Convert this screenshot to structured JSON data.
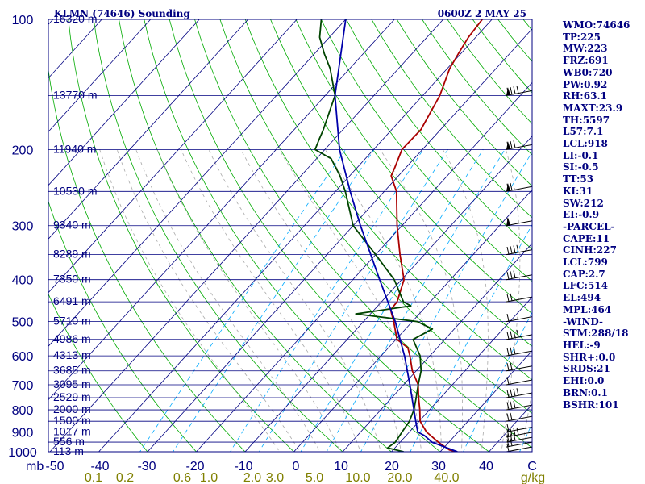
{
  "header": {
    "station": "KLMN (74646) Sounding",
    "time": "0600Z  2 MAY 25"
  },
  "axis_labels": {
    "pressure_unit": "mb",
    "mixing_ratio_unit": "g/kg"
  },
  "pressure_ticks": [
    "100",
    "200",
    "300",
    "400",
    "500",
    "600",
    "700",
    "800",
    "900",
    "1000"
  ],
  "temp_ticks": [
    "-50",
    "-40",
    "-30",
    "-20",
    "-10",
    "0",
    "10",
    "20",
    "30",
    "40",
    "C"
  ],
  "mixing_ratio_labels": [
    "0.1",
    "0.2",
    "0.6",
    "1.0",
    "2.0",
    "3.0",
    "5.0",
    "10.0",
    "20.0",
    "40.0"
  ],
  "height_labels": [
    "16320 m",
    "13770 m",
    "11940 m",
    "10530 m",
    "9340 m",
    "8289 m",
    "7350 m",
    "6491 m",
    "5710 m",
    "4986 m",
    "4313 m",
    "3685 m",
    "3095 m",
    "2529 m",
    "2000 m",
    "1500 m",
    "1017 m",
    "556 m",
    "113 m"
  ],
  "indices": [
    "WMO:74646",
    "TP:225",
    "MW:223",
    "FRZ:691",
    "WB0:720",
    "PW:0.92",
    "RH:63.1",
    "MAXT:23.9",
    "TH:5597",
    "L57:7.1",
    "LCL:918",
    "LI:-0.1",
    "SI:-0.5",
    "TT:53",
    "KI:31",
    "SW:212",
    "EI:-0.9",
    "-PARCEL-",
    "CAPE:11",
    "CINH:227",
    "LCL:799",
    "CAP:2.7",
    "LFC:514",
    "EL:494",
    "MPL:464",
    "-WIND-",
    "STM:288/18",
    "HEL:-9",
    "SHR+:0.0",
    "SRDS:21",
    "EHI:0.0",
    "BRN:0.1",
    "BSHR:101"
  ],
  "colors": {
    "text": "#000080",
    "isobar": "#000080",
    "isotherm": "#000080",
    "dry_adiabat": "#00aa00",
    "moist_adiabat": "#aaaaaa",
    "mixing_ratio": "#00aaff",
    "temperature": "#aa0000",
    "dewpoint": "#004400",
    "parcel": "#0000aa",
    "mixing_label": "#808000"
  },
  "chart_data": {
    "type": "line",
    "title": "KLMN (74646) Sounding",
    "xlabel": "C",
    "ylabel": "mb",
    "pressure_range": [
      1000,
      100
    ],
    "temp_range": [
      -50,
      50
    ],
    "series": [
      {
        "key": "temperature",
        "points": [
          [
            1000,
            23.5
          ],
          [
            990,
            21.5
          ],
          [
            980,
            20.6
          ],
          [
            950,
            17.8
          ],
          [
            900,
            13.5
          ],
          [
            850,
            10.2
          ],
          [
            800,
            8.0
          ],
          [
            750,
            5.5
          ],
          [
            700,
            3.0
          ],
          [
            650,
            -0.8
          ],
          [
            600,
            -4.1
          ],
          [
            575,
            -6.0
          ],
          [
            550,
            -9.8
          ],
          [
            500,
            -13.8
          ],
          [
            470,
            -16.6
          ],
          [
            450,
            -16.8
          ],
          [
            400,
            -19.5
          ],
          [
            350,
            -25.0
          ],
          [
            300,
            -31.0
          ],
          [
            250,
            -37.5
          ],
          [
            230,
            -41.5
          ],
          [
            220,
            -42.3
          ],
          [
            200,
            -44.2
          ],
          [
            180,
            -44.0
          ],
          [
            150,
            -46.5
          ],
          [
            130,
            -49.5
          ],
          [
            120,
            -50.5
          ],
          [
            110,
            -51.5
          ],
          [
            100,
            -52.0
          ]
        ]
      },
      {
        "key": "dewpoint",
        "points": [
          [
            1000,
            12.5
          ],
          [
            980,
            8.5
          ],
          [
            950,
            9.0
          ],
          [
            900,
            8.5
          ],
          [
            850,
            8.0
          ],
          [
            800,
            6.8
          ],
          [
            750,
            5.0
          ],
          [
            700,
            3.0
          ],
          [
            650,
            1.0
          ],
          [
            600,
            -2.0
          ],
          [
            550,
            -6.5
          ],
          [
            520,
            -4.5
          ],
          [
            500,
            -9.0
          ],
          [
            480,
            -23.0
          ],
          [
            460,
            -13.2
          ],
          [
            450,
            -15.5
          ],
          [
            400,
            -21.5
          ],
          [
            350,
            -30.0
          ],
          [
            300,
            -40.0
          ],
          [
            250,
            -48.0
          ],
          [
            230,
            -52.0
          ],
          [
            210,
            -57.0
          ],
          [
            200,
            -62.0
          ],
          [
            190,
            -63.0
          ],
          [
            180,
            -64.0
          ],
          [
            150,
            -68.0
          ],
          [
            130,
            -74.0
          ],
          [
            120,
            -78.0
          ],
          [
            110,
            -82.0
          ],
          [
            100,
            -85.0
          ]
        ]
      },
      {
        "key": "parcel",
        "points": [
          [
            1000,
            23.5
          ],
          [
            950,
            16.5
          ],
          [
            918,
            13.8
          ],
          [
            900,
            11.7
          ],
          [
            850,
            9.3
          ],
          [
            800,
            6.8
          ],
          [
            700,
            1.3
          ],
          [
            600,
            -5.2
          ],
          [
            500,
            -13.5
          ],
          [
            400,
            -24.5
          ],
          [
            300,
            -38.5
          ],
          [
            250,
            -47.0
          ],
          [
            200,
            -57.0
          ],
          [
            150,
            -68.0
          ],
          [
            100,
            -80.0
          ]
        ]
      }
    ]
  }
}
